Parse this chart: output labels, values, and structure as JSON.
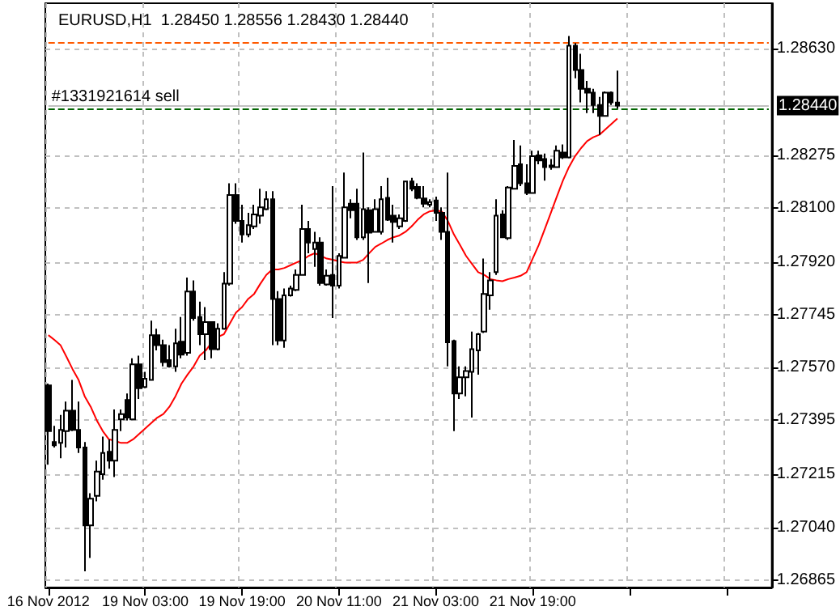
{
  "chart_data": {
    "type": "candlestick",
    "title": "EURUSD,H1  1.28450 1.28556 1.28430 1.28440",
    "categories": [
      "16 Nov 2012",
      null,
      null,
      null,
      null,
      null,
      null,
      null,
      null,
      null,
      null,
      null,
      null,
      null,
      null,
      null,
      "19 Nov 03:00",
      null,
      null,
      null,
      null,
      null,
      null,
      null,
      null,
      null,
      null,
      null,
      null,
      null,
      null,
      null,
      "19 Nov 19:00",
      null,
      null,
      null,
      null,
      null,
      null,
      null,
      null,
      null,
      null,
      null,
      null,
      null,
      null,
      null,
      "20 Nov 11:00",
      null,
      null,
      null,
      null,
      null,
      null,
      null,
      null,
      null,
      null,
      null,
      null,
      null,
      null,
      null,
      "21 Nov 03:00",
      null,
      null,
      null,
      null,
      null,
      null,
      null,
      null,
      null,
      null,
      null,
      null,
      null,
      null,
      null,
      "21 Nov 19:00",
      null,
      null,
      null,
      null,
      null,
      null,
      null,
      null,
      null,
      null,
      null,
      null,
      null,
      null,
      null,
      null,
      null,
      null,
      null,
      null,
      null,
      null,
      null,
      null,
      null,
      null,
      null,
      null,
      null,
      null,
      null,
      null,
      null,
      null,
      null,
      null,
      null,
      null,
      null
    ],
    "ohlc": [
      [
        1.27511,
        1.27517,
        1.27248,
        1.27359
      ],
      [
        1.27323,
        1.27377,
        1.27305,
        1.27312
      ],
      [
        1.2732,
        1.27413,
        1.27269,
        1.27363
      ],
      [
        1.27359,
        1.27457,
        1.27305,
        1.27427
      ],
      [
        1.27427,
        1.27529,
        1.27359,
        1.27363
      ],
      [
        1.27363,
        1.27457,
        1.27287,
        1.27305
      ],
      [
        1.27305,
        1.27323,
        1.26894,
        1.27046
      ],
      [
        1.27046,
        1.27153,
        1.26938,
        1.27135
      ],
      [
        1.27144,
        1.27261,
        1.27126,
        1.27225
      ],
      [
        1.27216,
        1.27341,
        1.27198,
        1.27287
      ],
      [
        1.27291,
        1.27332,
        1.27234,
        1.27261
      ],
      [
        1.27261,
        1.27431,
        1.27207,
        1.27363
      ],
      [
        1.27398,
        1.27431,
        1.27359,
        1.27416
      ],
      [
        1.27463,
        1.27484,
        1.27395,
        1.27404
      ],
      [
        1.27398,
        1.27601,
        1.27395,
        1.27581
      ],
      [
        1.27581,
        1.2761,
        1.27466,
        1.27502
      ],
      [
        1.27506,
        1.27556,
        1.27502,
        1.27533
      ],
      [
        1.27529,
        1.27726,
        1.27529,
        1.27678
      ],
      [
        1.27678,
        1.27699,
        1.27627,
        1.27645
      ],
      [
        1.27645,
        1.27663,
        1.27574,
        1.27588
      ],
      [
        1.27595,
        1.27645,
        1.2757,
        1.27574
      ],
      [
        1.27574,
        1.27699,
        1.27556,
        1.27651
      ],
      [
        1.27656,
        1.27738,
        1.27601,
        1.27613
      ],
      [
        1.27619,
        1.27869,
        1.2761,
        1.27823
      ],
      [
        1.27823,
        1.2786,
        1.27726,
        1.27735
      ],
      [
        1.27738,
        1.27789,
        1.27645,
        1.27681
      ],
      [
        1.27681,
        1.27771,
        1.27595,
        1.27721
      ],
      [
        1.27721,
        1.27721,
        1.27601,
        1.27631
      ],
      [
        1.27631,
        1.27717,
        1.27627,
        1.27699
      ],
      [
        1.27699,
        1.27887,
        1.27696,
        1.27849
      ],
      [
        1.27849,
        1.28182,
        1.27842,
        1.28143
      ],
      [
        1.28143,
        1.28182,
        1.28048,
        1.28057
      ],
      [
        1.28057,
        1.28111,
        1.27985,
        1.28012
      ],
      [
        1.28012,
        1.28084,
        1.28003,
        1.28043
      ],
      [
        1.28039,
        1.28111,
        1.2803,
        1.28079
      ],
      [
        1.28075,
        1.28164,
        1.28048,
        1.28102
      ],
      [
        1.28096,
        1.28156,
        1.28093,
        1.28129
      ],
      [
        1.28129,
        1.28156,
        1.27645,
        1.27798
      ],
      [
        1.27798,
        1.27824,
        1.27645,
        1.2766
      ],
      [
        1.2766,
        1.27833,
        1.27636,
        1.2781
      ],
      [
        1.2781,
        1.27842,
        1.27806,
        1.27833
      ],
      [
        1.27828,
        1.27896,
        1.27824,
        1.27878
      ],
      [
        1.27878,
        1.28111,
        1.27875,
        1.2803
      ],
      [
        1.2803,
        1.28057,
        1.2795,
        1.27985
      ],
      [
        1.27964,
        1.28021,
        1.27905,
        1.27985
      ],
      [
        1.27985,
        1.28003,
        1.27842,
        1.27851
      ],
      [
        1.27846,
        1.27896,
        1.27842,
        1.27875
      ],
      [
        1.27878,
        1.28173,
        1.27735,
        1.27842
      ],
      [
        1.27842,
        1.2795,
        1.27833,
        1.27941
      ],
      [
        1.27935,
        1.28218,
        1.27932,
        1.28102
      ],
      [
        1.28114,
        1.28129,
        1.28066,
        1.28093
      ],
      [
        1.28114,
        1.28164,
        1.27994,
        1.28003
      ],
      [
        1.28003,
        1.28284,
        1.27994,
        1.28096
      ],
      [
        1.28093,
        1.28102,
        1.27851,
        1.28018
      ],
      [
        1.28021,
        1.28129,
        1.28018,
        1.28096
      ],
      [
        1.28021,
        1.28173,
        1.28012,
        1.28129
      ],
      [
        1.28134,
        1.282,
        1.28057,
        1.28061
      ],
      [
        1.28075,
        1.28111,
        1.27985,
        1.28054
      ],
      [
        1.28039,
        1.28079,
        1.2803,
        1.28066
      ],
      [
        1.28057,
        1.28191,
        1.28054,
        1.28188
      ],
      [
        1.28188,
        1.282,
        1.28156,
        1.28164
      ],
      [
        1.2817,
        1.28182,
        1.28129,
        1.28134
      ],
      [
        1.28132,
        1.28173,
        1.28102,
        1.28114
      ],
      [
        1.28111,
        1.28129,
        1.28102,
        1.2812
      ],
      [
        1.28125,
        1.28138,
        1.28057,
        1.28084
      ],
      [
        1.28084,
        1.28102,
        1.27994,
        1.28021
      ],
      [
        1.28021,
        1.28218,
        1.27574,
        1.27654
      ],
      [
        1.27658,
        1.27663,
        1.27359,
        1.27484
      ],
      [
        1.27484,
        1.27574,
        1.27466,
        1.27538
      ],
      [
        1.27538,
        1.27574,
        1.27475,
        1.27559
      ],
      [
        1.27556,
        1.2769,
        1.27404,
        1.27631
      ],
      [
        1.27627,
        1.27685,
        1.27547,
        1.27681
      ],
      [
        1.2769,
        1.27932,
        1.27685,
        1.27815
      ],
      [
        1.2781,
        1.27887,
        1.27762,
        1.2786
      ],
      [
        1.27887,
        1.28129,
        1.27878,
        1.28075
      ],
      [
        1.28079,
        1.28093,
        1.28003,
        1.28003
      ],
      [
        1.28,
        1.28173,
        1.27994,
        1.28168
      ],
      [
        1.28164,
        1.28326,
        1.28161,
        1.2824
      ],
      [
        1.28245,
        1.28308,
        1.28173,
        1.28182
      ],
      [
        1.28182,
        1.28245,
        1.28143,
        1.2815
      ],
      [
        1.2815,
        1.2829,
        1.28147,
        1.28272
      ],
      [
        1.28275,
        1.2829,
        1.28245,
        1.28258
      ],
      [
        1.28263,
        1.28281,
        1.28191,
        1.28236
      ],
      [
        1.28236,
        1.28263,
        1.28227,
        1.28241
      ],
      [
        1.28236,
        1.28308,
        1.28233,
        1.2829
      ],
      [
        1.28284,
        1.28311,
        1.28263,
        1.28268
      ],
      [
        1.28268,
        1.28671,
        1.28265,
        1.28639
      ],
      [
        1.28639,
        1.28648,
        1.28531,
        1.28558
      ],
      [
        1.28558,
        1.28612,
        1.28451,
        1.28496
      ],
      [
        1.28496,
        1.28522,
        1.28415,
        1.28483
      ],
      [
        1.28483,
        1.28496,
        1.28415,
        1.28442
      ],
      [
        1.28442,
        1.28469,
        1.28343,
        1.28406
      ],
      [
        1.28406,
        1.28487,
        1.28406,
        1.28483
      ],
      [
        1.28483,
        1.28487,
        1.28442,
        1.28451
      ],
      [
        1.2845,
        1.28556,
        1.2843,
        1.2844
      ],
      null,
      null,
      null,
      null,
      null,
      null,
      null,
      null,
      null,
      null,
      null,
      null,
      null,
      null,
      null,
      null,
      null,
      null,
      null,
      null,
      null,
      null,
      null,
      null,
      null
    ],
    "series": [
      {
        "type": "line",
        "color": "#ff0000",
        "values": [
          1.27678,
          1.27662,
          1.27645,
          1.27606,
          1.27565,
          1.27529,
          1.27475,
          1.2744,
          1.27395,
          1.27359,
          1.27332,
          1.27327,
          1.2732,
          1.2732,
          1.27332,
          1.2735,
          1.27368,
          1.27386,
          1.27404,
          1.27416,
          1.2744,
          1.27475,
          1.27517,
          1.27547,
          1.27574,
          1.2761,
          1.27627,
          1.27654,
          1.27672,
          1.27681,
          1.27717,
          1.27753,
          1.27771,
          1.27798,
          1.27815,
          1.27848,
          1.27878,
          1.27896,
          1.27896,
          1.27901,
          1.2791,
          1.27919,
          1.27928,
          1.27941,
          1.2795,
          1.27941,
          1.27932,
          1.27928,
          1.27923,
          1.27919,
          1.27919,
          1.27919,
          1.27928,
          1.2795,
          1.27971,
          1.27982,
          1.27994,
          1.28003,
          1.28009,
          1.28021,
          1.28039,
          1.28061,
          1.28079,
          1.28089,
          1.28093,
          1.28088,
          1.28057,
          1.28012,
          1.27977,
          1.27941,
          1.27914,
          1.27887,
          1.27878,
          1.27864,
          1.2786,
          1.27857,
          1.27864,
          1.27869,
          1.27875,
          1.27887,
          1.27932,
          1.27977,
          1.2803,
          1.28084,
          1.28138,
          1.28191,
          1.28236,
          1.28272,
          1.28299,
          1.28322,
          1.28335,
          1.28343,
          1.28361,
          1.28379,
          1.28397,
          null,
          null,
          null,
          null,
          null,
          null,
          null,
          null,
          null,
          null,
          null,
          null,
          null,
          null,
          null,
          null,
          null,
          null,
          null,
          null,
          null,
          null,
          null,
          null,
          null
        ]
      }
    ],
    "ylim": [
      1.2684,
      1.2878
    ],
    "yticks": [
      1.26865,
      {
        "value": 1.2704,
        "label": "1.27040"
      },
      1.27215,
      1.27395,
      {
        "value": 1.2757,
        "label": "1.27570"
      },
      1.27745,
      {
        "value": 1.2792,
        "label": "1.27920"
      },
      {
        "value": 1.281,
        "label": "1.28100"
      },
      1.28275,
      {
        "value": 1.2863,
        "label": "1.28630"
      }
    ],
    "ref_lines": [
      {
        "axis": "y",
        "value": 1.2865,
        "color": "#ff5a00",
        "line_style": "dashed"
      },
      {
        "axis": "y",
        "value": 1.2843,
        "label": "#1331921614 sell",
        "color": "#006400",
        "line_style": "dashed"
      },
      {
        "axis": "y",
        "value": 1.2844,
        "label": "1.28440",
        "color": "#c0c0c0",
        "line_style": "solid"
      }
    ],
    "grid": true
  }
}
